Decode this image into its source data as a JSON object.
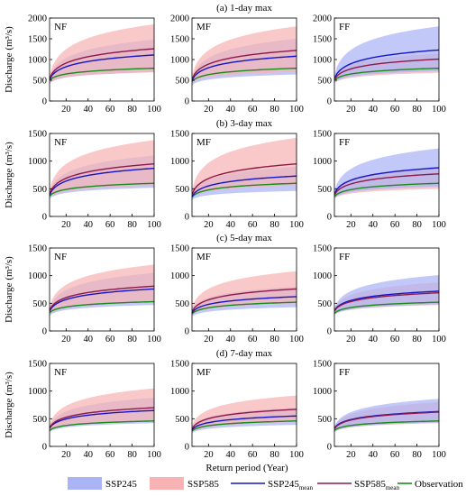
{
  "figure": {
    "y_axis_label": "Discharge (m³/s)",
    "x_axis_label": "Return period (Year)"
  },
  "legend": {
    "ssp245": {
      "label": "SSP245",
      "color": "#aab4f5"
    },
    "ssp585": {
      "label": "SSP585",
      "color": "#f7b3b3"
    },
    "ssp245_mean": {
      "label": "SSP245",
      "subscript": "mean",
      "color": "#1515c8"
    },
    "ssp585_mean": {
      "label": "SSP585",
      "subscript": "mean",
      "color": "#8b1a4a"
    },
    "observation": {
      "label": "Observation",
      "color": "#1a8a1a"
    }
  },
  "chart_data": [
    {
      "type": "area",
      "row_title": "(a) 1-day max",
      "panel": "NF",
      "x_ticks": [
        20,
        40,
        60,
        80,
        100
      ],
      "xlim": [
        5,
        100
      ],
      "ylim": [
        0,
        2000
      ],
      "y_ticks": [
        0,
        500,
        1000,
        1500,
        2000
      ],
      "x": [
        5,
        100
      ],
      "series": [
        {
          "name": "SSP245",
          "band_low": [
            420,
            700
          ],
          "band_high": [
            560,
            1480
          ]
        },
        {
          "name": "SSP585",
          "band_low": [
            440,
            690
          ],
          "band_high": [
            600,
            1850
          ]
        },
        {
          "name": "SSP245mean",
          "values": [
            520,
            1110
          ]
        },
        {
          "name": "SSP585mean",
          "values": [
            540,
            1260
          ]
        },
        {
          "name": "Observation",
          "values": [
            500,
            790
          ]
        }
      ]
    },
    {
      "type": "area",
      "row_title": "(a) 1-day max",
      "panel": "MF",
      "x_ticks": [
        20,
        40,
        60,
        80,
        100
      ],
      "xlim": [
        5,
        100
      ],
      "ylim": [
        0,
        2000
      ],
      "y_ticks": [
        0,
        500,
        1000,
        1500,
        2000
      ],
      "x": [
        5,
        100
      ],
      "series": [
        {
          "name": "SSP245",
          "band_low": [
            380,
            640
          ],
          "band_high": [
            540,
            1500
          ]
        },
        {
          "name": "SSP585",
          "band_low": [
            440,
            700
          ],
          "band_high": [
            600,
            1800
          ]
        },
        {
          "name": "SSP245mean",
          "values": [
            500,
            1080
          ]
        },
        {
          "name": "SSP585mean",
          "values": [
            530,
            1220
          ]
        },
        {
          "name": "Observation",
          "values": [
            470,
            790
          ]
        }
      ]
    },
    {
      "type": "area",
      "row_title": "(a) 1-day max",
      "panel": "FF",
      "x_ticks": [
        20,
        40,
        60,
        80,
        100
      ],
      "xlim": [
        5,
        100
      ],
      "ylim": [
        0,
        2000
      ],
      "y_ticks": [
        0,
        500,
        1000,
        1500,
        2000
      ],
      "x": [
        5,
        100
      ],
      "series": [
        {
          "name": "SSP245",
          "band_low": [
            440,
            720
          ],
          "band_high": [
            620,
            1800
          ]
        },
        {
          "name": "SSP585",
          "band_low": [
            430,
            680
          ],
          "band_high": [
            580,
            1150
          ]
        },
        {
          "name": "SSP245mean",
          "values": [
            540,
            1230
          ]
        },
        {
          "name": "SSP585mean",
          "values": [
            520,
            1010
          ]
        },
        {
          "name": "Observation",
          "values": [
            500,
            790
          ]
        }
      ]
    },
    {
      "type": "area",
      "row_title": "(b) 3-day max",
      "panel": "NF",
      "x_ticks": [
        20,
        40,
        60,
        80,
        100
      ],
      "xlim": [
        5,
        100
      ],
      "ylim": [
        0,
        1500
      ],
      "y_ticks": [
        0,
        500,
        1000,
        1500
      ],
      "x": [
        5,
        100
      ],
      "series": [
        {
          "name": "SSP245",
          "band_low": [
            320,
            520
          ],
          "band_high": [
            440,
            1100
          ]
        },
        {
          "name": "SSP585",
          "band_low": [
            340,
            560
          ],
          "band_high": [
            480,
            1380
          ]
        },
        {
          "name": "SSP245mean",
          "values": [
            390,
            870
          ]
        },
        {
          "name": "SSP585mean",
          "values": [
            410,
            950
          ]
        },
        {
          "name": "Observation",
          "values": [
            370,
            600
          ]
        }
      ]
    },
    {
      "type": "area",
      "row_title": "(b) 3-day max",
      "panel": "MF",
      "x_ticks": [
        20,
        40,
        60,
        80,
        100
      ],
      "xlim": [
        5,
        100
      ],
      "ylim": [
        0,
        1500
      ],
      "y_ticks": [
        0,
        500,
        1000,
        1500
      ],
      "x": [
        5,
        100
      ],
      "series": [
        {
          "name": "SSP245",
          "band_low": [
            300,
            460
          ],
          "band_high": [
            420,
            900
          ]
        },
        {
          "name": "SSP585",
          "band_low": [
            340,
            560
          ],
          "band_high": [
            480,
            1420
          ]
        },
        {
          "name": "SSP245mean",
          "values": [
            360,
            730
          ]
        },
        {
          "name": "SSP585mean",
          "values": [
            400,
            950
          ]
        },
        {
          "name": "Observation",
          "values": [
            350,
            600
          ]
        }
      ]
    },
    {
      "type": "area",
      "row_title": "(b) 3-day max",
      "panel": "FF",
      "x_ticks": [
        20,
        40,
        60,
        80,
        100
      ],
      "xlim": [
        5,
        100
      ],
      "ylim": [
        0,
        1500
      ],
      "y_ticks": [
        0,
        500,
        1000,
        1500
      ],
      "x": [
        5,
        100
      ],
      "series": [
        {
          "name": "SSP245",
          "band_low": [
            330,
            540
          ],
          "band_high": [
            460,
            1230
          ]
        },
        {
          "name": "SSP585",
          "band_low": [
            320,
            500
          ],
          "band_high": [
            440,
            900
          ]
        },
        {
          "name": "SSP245mean",
          "values": [
            410,
            880
          ]
        },
        {
          "name": "SSP585mean",
          "values": [
            390,
            770
          ]
        },
        {
          "name": "Observation",
          "values": [
            360,
            600
          ]
        }
      ]
    },
    {
      "type": "area",
      "row_title": "(c) 5-day max",
      "panel": "NF",
      "x_ticks": [
        20,
        40,
        60,
        80,
        100
      ],
      "xlim": [
        5,
        100
      ],
      "ylim": [
        0,
        1500
      ],
      "y_ticks": [
        0,
        500,
        1000,
        1500
      ],
      "x": [
        5,
        100
      ],
      "series": [
        {
          "name": "SSP245",
          "band_low": [
            280,
            470
          ],
          "band_high": [
            400,
            1050
          ]
        },
        {
          "name": "SSP585",
          "band_low": [
            300,
            520
          ],
          "band_high": [
            440,
            1200
          ]
        },
        {
          "name": "SSP245mean",
          "values": [
            360,
            760
          ]
        },
        {
          "name": "SSP585mean",
          "values": [
            380,
            810
          ]
        },
        {
          "name": "Observation",
          "values": [
            330,
            530
          ]
        }
      ]
    },
    {
      "type": "area",
      "row_title": "(c) 5-day max",
      "panel": "MF",
      "x_ticks": [
        20,
        40,
        60,
        80,
        100
      ],
      "xlim": [
        5,
        100
      ],
      "ylim": [
        0,
        1500
      ],
      "y_ticks": [
        0,
        500,
        1000,
        1500
      ],
      "x": [
        5,
        100
      ],
      "series": [
        {
          "name": "SSP245",
          "band_low": [
            260,
            430
          ],
          "band_high": [
            380,
            800
          ]
        },
        {
          "name": "SSP585",
          "band_low": [
            290,
            500
          ],
          "band_high": [
            420,
            1080
          ]
        },
        {
          "name": "SSP245mean",
          "values": [
            330,
            620
          ]
        },
        {
          "name": "SSP585mean",
          "values": [
            350,
            760
          ]
        },
        {
          "name": "Observation",
          "values": [
            310,
            520
          ]
        }
      ]
    },
    {
      "type": "area",
      "row_title": "(c) 5-day max",
      "panel": "FF",
      "x_ticks": [
        20,
        40,
        60,
        80,
        100
      ],
      "xlim": [
        5,
        100
      ],
      "ylim": [
        0,
        1500
      ],
      "y_ticks": [
        0,
        500,
        1000,
        1500
      ],
      "x": [
        5,
        100
      ],
      "series": [
        {
          "name": "SSP245",
          "band_low": [
            290,
            480
          ],
          "band_high": [
            410,
            1010
          ]
        },
        {
          "name": "SSP585",
          "band_low": [
            290,
            470
          ],
          "band_high": [
            400,
            880
          ]
        },
        {
          "name": "SSP245mean",
          "values": [
            370,
            720
          ]
        },
        {
          "name": "SSP585mean",
          "values": [
            360,
            690
          ]
        },
        {
          "name": "Observation",
          "values": [
            320,
            520
          ]
        }
      ]
    },
    {
      "type": "area",
      "row_title": "(d) 7-day max",
      "panel": "NF",
      "x_ticks": [
        20,
        40,
        60,
        80,
        100
      ],
      "xlim": [
        5,
        100
      ],
      "ylim": [
        0,
        1500
      ],
      "y_ticks": [
        0,
        500,
        1000,
        1500
      ],
      "x": [
        5,
        100
      ],
      "series": [
        {
          "name": "SSP245",
          "band_low": [
            260,
            420
          ],
          "band_high": [
            360,
            880
          ]
        },
        {
          "name": "SSP585",
          "band_low": [
            270,
            450
          ],
          "band_high": [
            390,
            1050
          ]
        },
        {
          "name": "SSP245mean",
          "values": [
            330,
            650
          ]
        },
        {
          "name": "SSP585mean",
          "values": [
            340,
            700
          ]
        },
        {
          "name": "Observation",
          "values": [
            290,
            460
          ]
        }
      ]
    },
    {
      "type": "area",
      "row_title": "(d) 7-day max",
      "panel": "MF",
      "x_ticks": [
        20,
        40,
        60,
        80,
        100
      ],
      "xlim": [
        5,
        100
      ],
      "ylim": [
        0,
        1500
      ],
      "y_ticks": [
        0,
        500,
        1000,
        1500
      ],
      "x": [
        5,
        100
      ],
      "series": [
        {
          "name": "SSP245",
          "band_low": [
            240,
            390
          ],
          "band_high": [
            340,
            700
          ]
        },
        {
          "name": "SSP585",
          "band_low": [
            260,
            440
          ],
          "band_high": [
            380,
            920
          ]
        },
        {
          "name": "SSP245mean",
          "values": [
            300,
            550
          ]
        },
        {
          "name": "SSP585mean",
          "values": [
            320,
            670
          ]
        },
        {
          "name": "Observation",
          "values": [
            280,
            460
          ]
        }
      ]
    },
    {
      "type": "area",
      "row_title": "(d) 7-day max",
      "panel": "FF",
      "x_ticks": [
        20,
        40,
        60,
        80,
        100
      ],
      "xlim": [
        5,
        100
      ],
      "ylim": [
        0,
        1500
      ],
      "y_ticks": [
        0,
        500,
        1000,
        1500
      ],
      "x": [
        5,
        100
      ],
      "series": [
        {
          "name": "SSP245",
          "band_low": [
            260,
            430
          ],
          "band_high": [
            360,
            860
          ]
        },
        {
          "name": "SSP585",
          "band_low": [
            260,
            420
          ],
          "band_high": [
            350,
            800
          ]
        },
        {
          "name": "SSP245mean",
          "values": [
            330,
            630
          ]
        },
        {
          "name": "SSP585mean",
          "values": [
            320,
            620
          ]
        },
        {
          "name": "Observation",
          "values": [
            290,
            460
          ]
        }
      ]
    }
  ]
}
